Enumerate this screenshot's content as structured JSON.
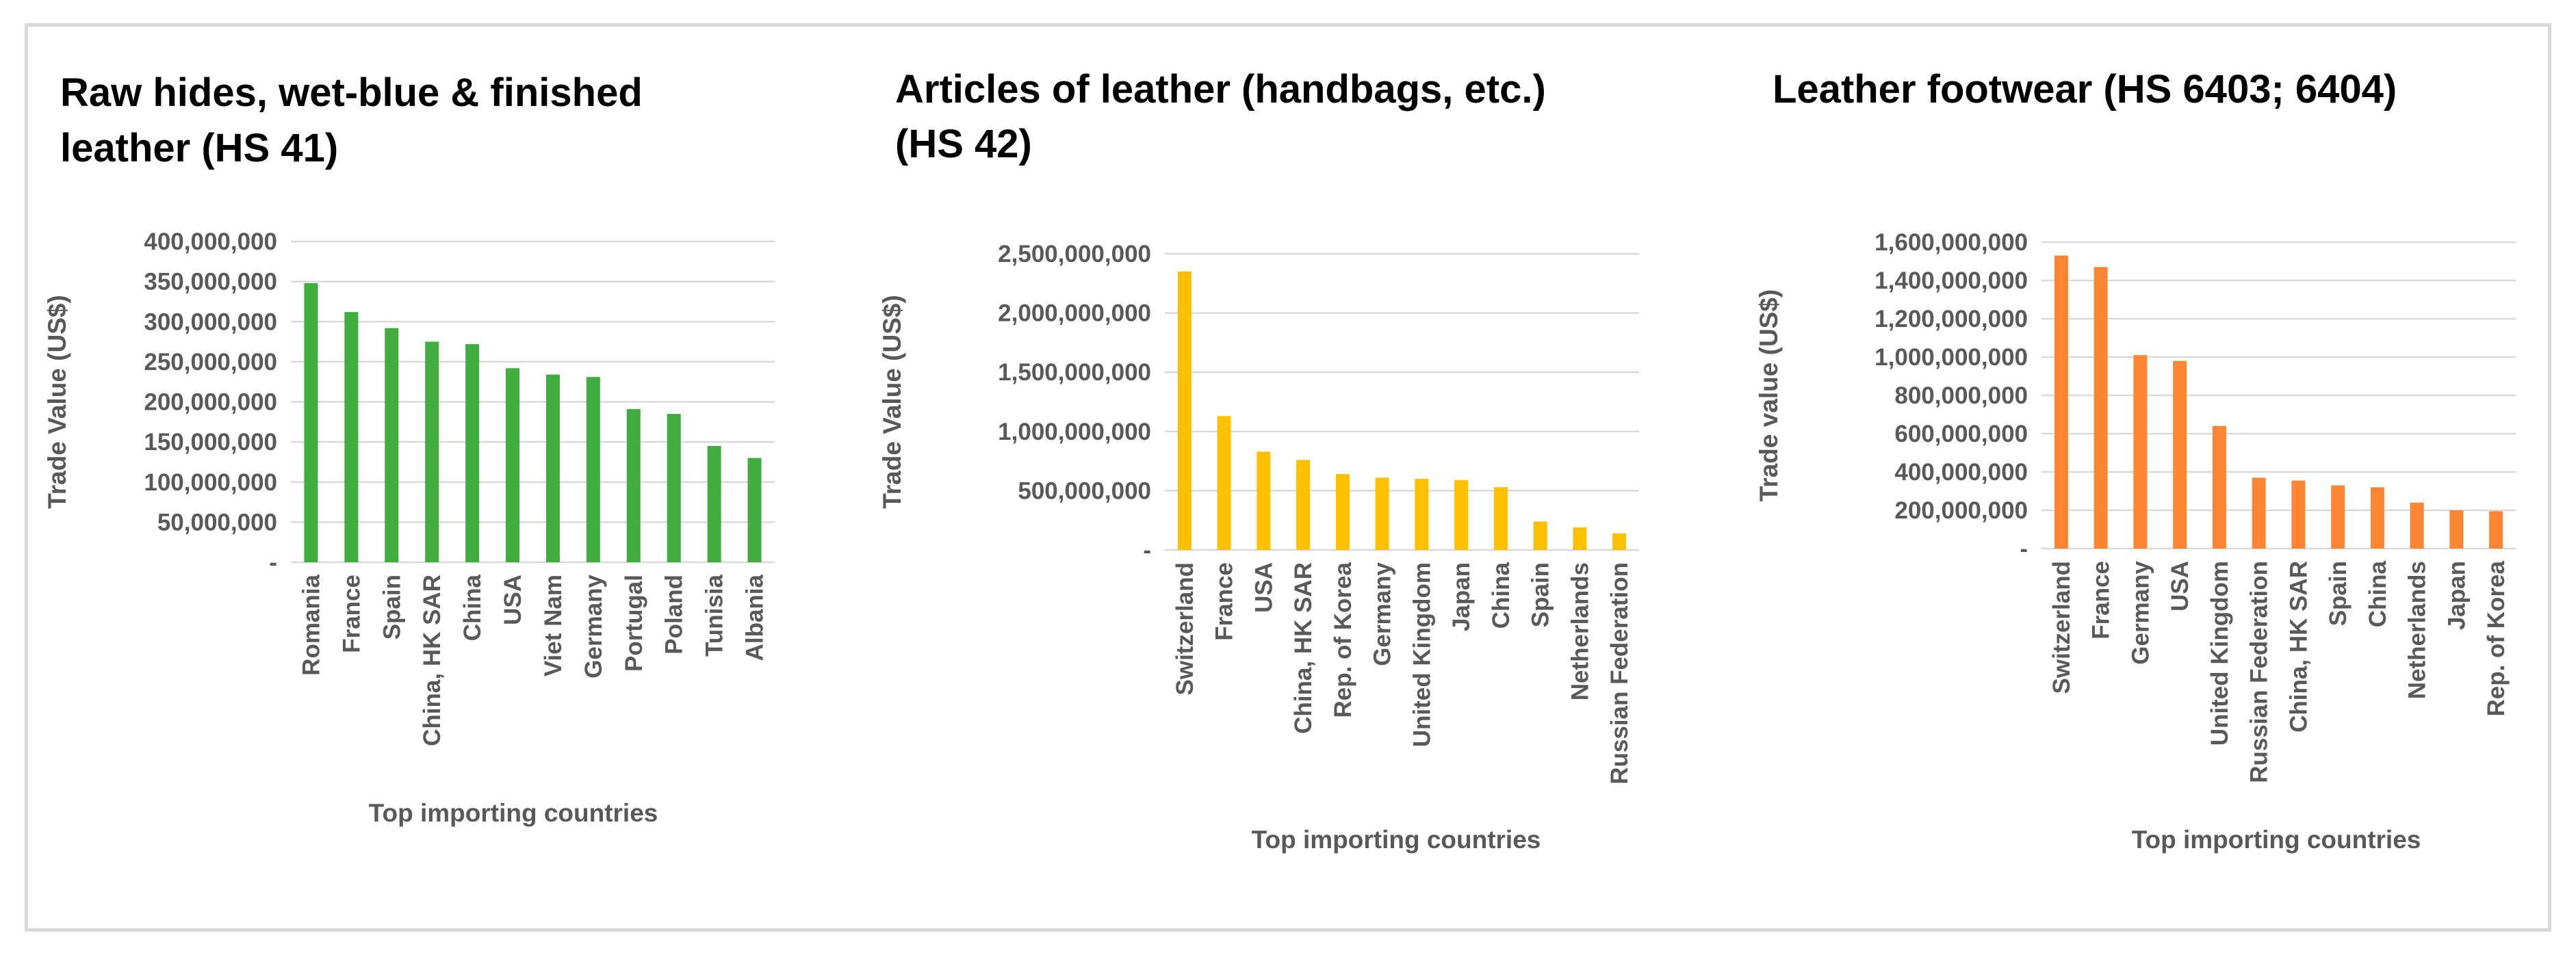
{
  "chart_data": [
    {
      "type": "bar",
      "title_lines": [
        "Raw hides, wet-blue & finished",
        "leather (HS 41)"
      ],
      "xlabel": "Top importing countries",
      "ylabel": "Trade Value (US$)",
      "ylim": [
        0,
        400000000
      ],
      "y_ticks": [
        0,
        50000000,
        100000000,
        150000000,
        200000000,
        250000000,
        300000000,
        350000000,
        400000000
      ],
      "y_tick_labels": [
        "-",
        "50,000,000",
        "100,000,000",
        "150,000,000",
        "200,000,000",
        "250,000,000",
        "300,000,000",
        "350,000,000",
        "400,000,000"
      ],
      "categories": [
        "Romania",
        "France",
        "Spain",
        "China, HK SAR",
        "China",
        "USA",
        "Viet Nam",
        "Germany",
        "Portugal",
        "Poland",
        "Tunisia",
        "Albania"
      ],
      "values": [
        348000000,
        312000000,
        292000000,
        275000000,
        272000000,
        242000000,
        234000000,
        231000000,
        191000000,
        185000000,
        145000000,
        130000000
      ],
      "color": "#3fae3f",
      "grid": true,
      "legend": "none"
    },
    {
      "type": "bar",
      "title_lines": [
        "Articles of leather (handbags, etc.)",
        "(HS 42)"
      ],
      "xlabel": "Top importing countries",
      "ylabel": "Trade Value (US$)",
      "ylim": [
        0,
        2500000000
      ],
      "y_ticks": [
        0,
        500000000,
        1000000000,
        1500000000,
        2000000000,
        2500000000
      ],
      "y_tick_labels": [
        "-",
        "500,000,000",
        "1,000,000,000",
        "1,500,000,000",
        "2,000,000,000",
        "2,500,000,000"
      ],
      "categories": [
        "Switzerland",
        "France",
        "USA",
        "China, HK SAR",
        "Rep. of Korea",
        "Germany",
        "United Kingdom",
        "Japan",
        "China",
        "Spain",
        "Netherlands",
        "Russian Federation"
      ],
      "values": [
        2350000000,
        1130000000,
        830000000,
        760000000,
        640000000,
        610000000,
        600000000,
        590000000,
        530000000,
        240000000,
        190000000,
        140000000
      ],
      "color": "#ffc000",
      "grid": true,
      "legend": "none"
    },
    {
      "type": "bar",
      "title_lines": [
        "Leather footwear (HS 6403; 6404)"
      ],
      "xlabel": "Top importing countries",
      "ylabel": "Trade value (US$)",
      "ylim": [
        0,
        1600000000
      ],
      "y_ticks": [
        0,
        200000000,
        400000000,
        600000000,
        800000000,
        1000000000,
        1200000000,
        1400000000,
        1600000000
      ],
      "y_tick_labels": [
        "-",
        "200,000,000",
        "400,000,000",
        "600,000,000",
        "800,000,000",
        "1,000,000,000",
        "1,200,000,000",
        "1,400,000,000",
        "1,600,000,000"
      ],
      "categories": [
        "Switzerland",
        "France",
        "Germany",
        "USA",
        "United Kingdom",
        "Russian Federation",
        "China, HK SAR",
        "Spain",
        "China",
        "Netherlands",
        "Japan",
        "Rep. of Korea"
      ],
      "values": [
        1530000000,
        1470000000,
        1010000000,
        980000000,
        640000000,
        370000000,
        355000000,
        330000000,
        320000000,
        240000000,
        200000000,
        195000000
      ],
      "color": "#fe8534",
      "grid": true,
      "legend": "none"
    }
  ]
}
